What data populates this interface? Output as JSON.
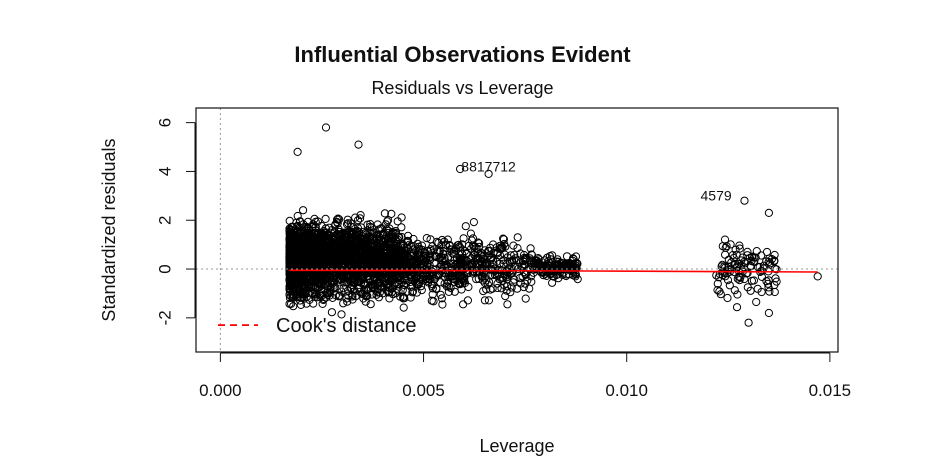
{
  "title": "Influential Observations Evident",
  "subtitle": "Residuals vs Leverage",
  "chart_data": {
    "type": "scatter",
    "title": "Influential Observations Evident",
    "subtitle": "Residuals vs Leverage",
    "xlabel": "Leverage",
    "ylabel": "Standardized residuals",
    "xlim": [
      -0.0006,
      0.0152
    ],
    "ylim": [
      -3.4,
      6.6
    ],
    "xticks": [
      "0.000",
      "0.005",
      "0.010",
      "0.015"
    ],
    "xtick_values": [
      0.0,
      0.005,
      0.01,
      0.015
    ],
    "yticks": [
      "-2",
      "0",
      "2",
      "4",
      "6"
    ],
    "ytick_values": [
      -2,
      0,
      2,
      4,
      6
    ],
    "grid": false,
    "reference_lines": {
      "horizontal_y": 0,
      "vertical_x": 0
    },
    "smoother_color": "#ff0000",
    "cooks_color": "#ff0000",
    "legend": {
      "position": "bottom-left",
      "entries": [
        "Cook's distance"
      ]
    },
    "point_labels": [
      {
        "text": "8817712",
        "x": 0.0066,
        "y": 4.0
      },
      {
        "text": "4579",
        "x": 0.0122,
        "y": 2.8
      }
    ],
    "clusters": [
      {
        "description": "dense main cloud",
        "x_range": [
          0.0017,
          0.0045
        ],
        "y_range": [
          -2.6,
          5.8
        ]
      },
      {
        "description": "middle cloud",
        "x_range": [
          0.0045,
          0.0088
        ],
        "y_range": [
          -2.1,
          4.2
        ]
      },
      {
        "description": "high-leverage group",
        "x_range": [
          0.0122,
          0.0147
        ],
        "y_range": [
          -2.2,
          2.8
        ]
      }
    ],
    "notable_points": [
      {
        "x": 0.0026,
        "y": 5.8
      },
      {
        "x": 0.0019,
        "y": 4.8
      },
      {
        "x": 0.0034,
        "y": 5.1
      },
      {
        "x": 0.0059,
        "y": 4.1
      },
      {
        "x": 0.0066,
        "y": 3.9
      },
      {
        "x": 0.0129,
        "y": 2.8
      },
      {
        "x": 0.0135,
        "y": 2.3
      },
      {
        "x": 0.0147,
        "y": -0.3
      },
      {
        "x": 0.013,
        "y": -2.2
      },
      {
        "x": 0.0135,
        "y": -1.8
      }
    ]
  }
}
